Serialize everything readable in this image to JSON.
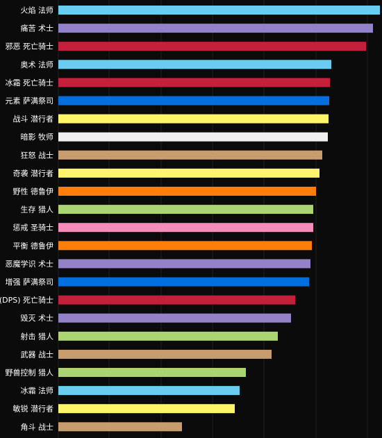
{
  "chart_data": {
    "type": "bar",
    "orientation": "horizontal",
    "title": "",
    "xlabel": "",
    "ylabel": "",
    "grid": true,
    "xlim": [
      0,
      465
    ],
    "categories": [
      "火焰 法师",
      "痛苦 术士",
      "邪恶 死亡骑士",
      "奥术 法师",
      "冰霜 死亡骑士",
      "元素 萨满祭司",
      "战斗 潜行者",
      "暗影 牧师",
      "狂怒 战士",
      "奇袭 潜行者",
      "野性 德鲁伊",
      "生存 猎人",
      "惩戒 圣骑士",
      "平衡 德鲁伊",
      "恶魔学识 术士",
      "增强 萨满祭司",
      "(DPS) 死亡骑士",
      "毁灭 术士",
      "射击 猎人",
      "武器 战士",
      "野兽控制 猎人",
      "冰霜 法师",
      "敏锐 潜行者",
      "角斗 战士"
    ],
    "values": [
      463,
      453,
      443,
      393,
      391,
      390,
      389,
      388,
      380,
      376,
      371,
      367,
      367,
      365,
      363,
      361,
      341,
      335,
      316,
      307,
      270,
      261,
      254,
      178
    ],
    "colors": [
      "#69ccf0",
      "#9482c9",
      "#c41f3b",
      "#69ccf0",
      "#c41f3b",
      "#0070de",
      "#fff569",
      "#f0f0f0",
      "#c79c6e",
      "#fff569",
      "#ff7d0a",
      "#abd473",
      "#f58cba",
      "#ff7d0a",
      "#9482c9",
      "#0070de",
      "#c41f3b",
      "#9482c9",
      "#abd473",
      "#c79c6e",
      "#abd473",
      "#69ccf0",
      "#fff569",
      "#c79c6e"
    ]
  }
}
